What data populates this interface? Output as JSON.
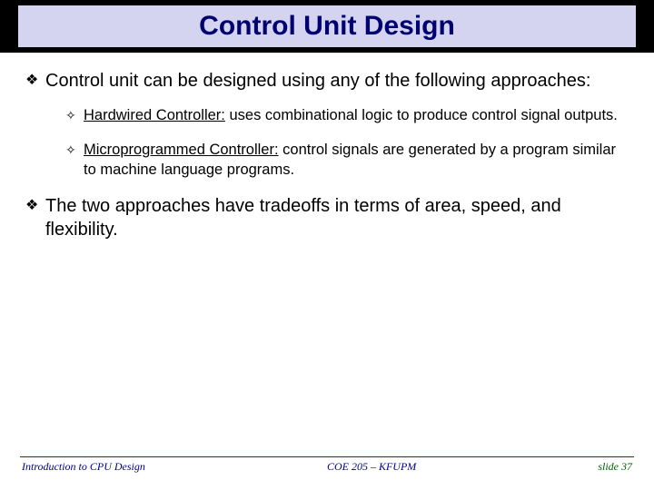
{
  "colors": {
    "title_bg": "#d4d4f0",
    "title_text": "#000070",
    "topbar_bg": "#000000",
    "body_text": "#000000",
    "footer_line": "#a00000",
    "footer_left": "#000088",
    "footer_center": "#000088",
    "footer_right": "#006000"
  },
  "fonts": {
    "title_family": "Comic Sans MS",
    "title_size_pt": 30,
    "body_size_pt": 20,
    "sub_size_pt": 16.5,
    "footer_size_pt": 12
  },
  "title": "Control Unit Design",
  "bullets": {
    "b1": "Control unit can be designed using any of the following approaches:",
    "b2_lead": "Hardwired Controller:",
    "b2_rest": " uses combinational logic to produce control signal outputs.",
    "b3_lead": "Microprogrammed Controller:",
    "b3_rest": " control signals are generated by a program similar to machine language programs.",
    "b4": "The two approaches have tradeoffs in terms of area, speed, and flexibility."
  },
  "glyphs": {
    "main": "❖",
    "sub": "✧"
  },
  "footer": {
    "left": "Introduction to CPU Design",
    "center": "COE 205 – KFUPM",
    "right": "slide 37"
  }
}
